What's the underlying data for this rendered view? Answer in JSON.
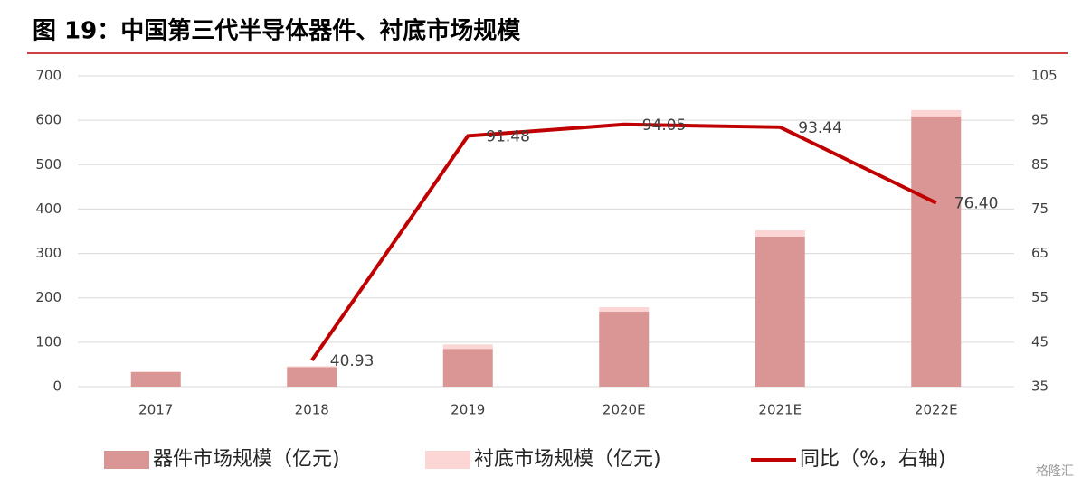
{
  "chart_data": {
    "type": "bar_line",
    "title": "图 19：中国第三代半导体器件、衬底市场规模",
    "categories": [
      "2017",
      "2018",
      "2019",
      "2020E",
      "2021E",
      "2022E"
    ],
    "series": [
      {
        "name": "器件市场规模（亿元)",
        "type": "bar",
        "color": "#d99694",
        "values": [
          33,
          44,
          85,
          169,
          338,
          609
        ]
      },
      {
        "name": "衬底市场规模（亿元)",
        "type": "bar",
        "color": "#fcd5d5",
        "values": [
          1,
          2,
          10,
          10,
          14,
          14
        ]
      },
      {
        "name": "同比（%，右轴)",
        "type": "line",
        "axis": "y2",
        "color": "#c00000",
        "values": [
          null,
          40.93,
          91.48,
          94.05,
          93.44,
          76.4
        ],
        "value_labels": [
          null,
          "40.93",
          "91.48",
          "94.05",
          "93.44",
          "76.40"
        ]
      }
    ],
    "ylim": [
      0,
      700
    ],
    "yticks": [
      0,
      100,
      200,
      300,
      400,
      500,
      600,
      700
    ],
    "y2lim": [
      35,
      105
    ],
    "y2ticks": [
      35,
      45,
      55,
      65,
      75,
      85,
      95,
      105
    ],
    "grid": true,
    "legend": "bottom",
    "watermark": "格隆汇"
  }
}
